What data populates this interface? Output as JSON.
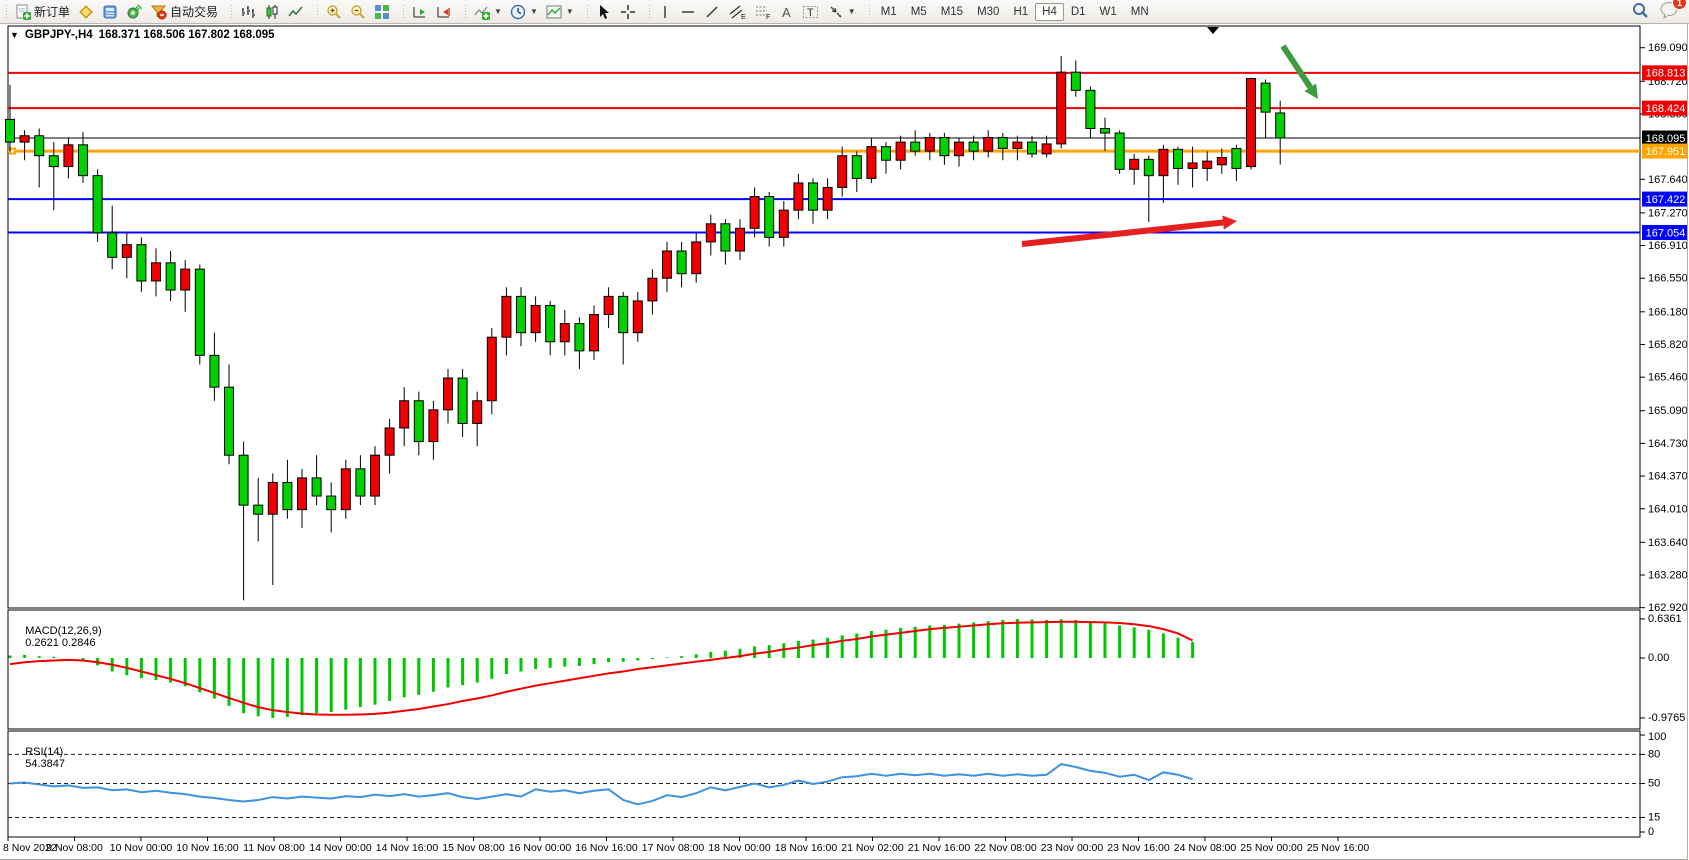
{
  "header": {
    "symbol": "GBPJPY-,H4",
    "ohlc": "168.371 168.506 167.802 168.095"
  },
  "toolbar": {
    "new_order_label": "新订单",
    "autotrading_label": "自动交易",
    "timeframes": [
      "M1",
      "M5",
      "M15",
      "M30",
      "H1",
      "H4",
      "D1",
      "W1",
      "MN"
    ],
    "active_timeframe": "H4",
    "notification_count": "1",
    "icons": [
      "new-order-icon",
      "gold-icon",
      "market-watch-icon",
      "signals-icon",
      "autotrading-icon",
      "bar-chart-icon",
      "candlestick-icon",
      "line-chart-icon",
      "zoom-in-icon",
      "zoom-out-icon",
      "tile-windows-icon",
      "auto-scroll-icon",
      "chart-shift-icon",
      "indicators-icon",
      "periods-icon",
      "templates-icon",
      "cursor-icon",
      "crosshair-icon",
      "vertical-line-icon",
      "horizontal-line-icon",
      "trendline-icon",
      "channel-icon",
      "fibonacci-icon",
      "text-icon",
      "text-label-icon",
      "arrows-icon",
      "search-icon",
      "chat-icon"
    ]
  },
  "chart_data": {
    "type": "candlestick",
    "symbol": "GBPJPY-",
    "timeframe": "H4",
    "title": "GBPJPY-,H4 168.371 168.506 167.802 168.095",
    "colors": {
      "bull": "#f00000",
      "bear": "#00d200",
      "outline": "#000000",
      "macd_hist": "#00c800",
      "macd_signal": "#f00000",
      "rsi_line": "#3f92e0",
      "level_red": "#f00000",
      "level_blue": "#0000ff",
      "level_orange": "#ffa500",
      "current_price_line": "#000000",
      "green_arrow": "#3f9b3f",
      "red_arrow": "#e62020"
    },
    "candles": [
      [
        168.3,
        168.68,
        167.95,
        168.05
      ],
      [
        168.05,
        168.18,
        167.85,
        168.12
      ],
      [
        168.12,
        168.2,
        167.55,
        167.9
      ],
      [
        167.9,
        168.05,
        167.3,
        167.78
      ],
      [
        167.78,
        168.1,
        167.65,
        168.02
      ],
      [
        168.02,
        168.16,
        167.6,
        167.68
      ],
      [
        167.68,
        167.75,
        166.95,
        167.05
      ],
      [
        167.05,
        167.35,
        166.65,
        166.78
      ],
      [
        166.78,
        167.05,
        166.55,
        166.92
      ],
      [
        166.92,
        167.0,
        166.4,
        166.52
      ],
      [
        166.52,
        166.88,
        166.35,
        166.72
      ],
      [
        166.72,
        166.85,
        166.3,
        166.42
      ],
      [
        166.42,
        166.75,
        166.18,
        166.65
      ],
      [
        166.65,
        166.7,
        165.6,
        165.7
      ],
      [
        165.7,
        165.95,
        165.2,
        165.35
      ],
      [
        165.35,
        165.6,
        164.5,
        164.6
      ],
      [
        164.6,
        164.75,
        163.0,
        164.05
      ],
      [
        164.05,
        164.35,
        163.65,
        163.95
      ],
      [
        163.95,
        164.4,
        163.17,
        164.3
      ],
      [
        164.3,
        164.55,
        163.9,
        164.0
      ],
      [
        164.0,
        164.45,
        163.8,
        164.35
      ],
      [
        164.35,
        164.6,
        164.05,
        164.15
      ],
      [
        164.15,
        164.3,
        163.75,
        164.0
      ],
      [
        164.0,
        164.55,
        163.9,
        164.45
      ],
      [
        164.45,
        164.6,
        164.05,
        164.15
      ],
      [
        164.15,
        164.7,
        164.05,
        164.6
      ],
      [
        164.6,
        165.0,
        164.4,
        164.9
      ],
      [
        164.9,
        165.35,
        164.7,
        165.2
      ],
      [
        165.2,
        165.3,
        164.6,
        164.75
      ],
      [
        164.75,
        165.2,
        164.55,
        165.1
      ],
      [
        165.1,
        165.55,
        164.95,
        165.45
      ],
      [
        165.45,
        165.55,
        164.8,
        164.95
      ],
      [
        164.95,
        165.3,
        164.7,
        165.2
      ],
      [
        165.2,
        166.0,
        165.05,
        165.9
      ],
      [
        165.9,
        166.45,
        165.7,
        166.35
      ],
      [
        166.35,
        166.45,
        165.8,
        165.95
      ],
      [
        165.95,
        166.35,
        165.85,
        166.25
      ],
      [
        166.25,
        166.3,
        165.7,
        165.85
      ],
      [
        165.85,
        166.2,
        165.7,
        166.05
      ],
      [
        166.05,
        166.12,
        165.55,
        165.75
      ],
      [
        165.75,
        166.25,
        165.65,
        166.15
      ],
      [
        166.15,
        166.45,
        166.0,
        166.35
      ],
      [
        166.35,
        166.4,
        165.6,
        165.95
      ],
      [
        165.95,
        166.4,
        165.85,
        166.3
      ],
      [
        166.3,
        166.65,
        166.15,
        166.55
      ],
      [
        166.55,
        166.95,
        166.4,
        166.85
      ],
      [
        166.85,
        166.95,
        166.45,
        166.6
      ],
      [
        166.6,
        167.05,
        166.5,
        166.95
      ],
      [
        166.95,
        167.25,
        166.8,
        167.15
      ],
      [
        167.15,
        167.2,
        166.7,
        166.85
      ],
      [
        166.85,
        167.2,
        166.75,
        167.1
      ],
      [
        167.1,
        167.55,
        167.0,
        167.45
      ],
      [
        167.45,
        167.5,
        166.9,
        167.0
      ],
      [
        167.0,
        167.4,
        166.9,
        167.3
      ],
      [
        167.3,
        167.7,
        167.2,
        167.6
      ],
      [
        167.6,
        167.65,
        167.15,
        167.3
      ],
      [
        167.3,
        167.65,
        167.2,
        167.55
      ],
      [
        167.55,
        168.0,
        167.45,
        167.9
      ],
      [
        167.9,
        167.95,
        167.5,
        167.65
      ],
      [
        167.65,
        168.1,
        167.6,
        168.0
      ],
      [
        168.0,
        168.05,
        167.7,
        167.85
      ],
      [
        167.85,
        168.12,
        167.75,
        168.05
      ],
      [
        168.05,
        168.18,
        167.9,
        167.95
      ],
      [
        167.95,
        168.15,
        167.85,
        168.1
      ],
      [
        168.1,
        168.15,
        167.8,
        167.9
      ],
      [
        167.9,
        168.1,
        167.78,
        168.05
      ],
      [
        168.05,
        168.12,
        167.85,
        167.95
      ],
      [
        167.95,
        168.18,
        167.88,
        168.1
      ],
      [
        168.1,
        168.15,
        167.85,
        167.98
      ],
      [
        167.98,
        168.12,
        167.85,
        168.05
      ],
      [
        168.05,
        168.12,
        167.88,
        167.92
      ],
      [
        167.92,
        168.12,
        167.88,
        168.03
      ],
      [
        168.03,
        169.0,
        167.98,
        168.82
      ],
      [
        168.82,
        168.95,
        168.55,
        168.62
      ],
      [
        168.62,
        168.66,
        168.1,
        168.2
      ],
      [
        168.2,
        168.32,
        167.95,
        168.15
      ],
      [
        168.15,
        168.18,
        167.7,
        167.75
      ],
      [
        167.75,
        167.92,
        167.58,
        167.86
      ],
      [
        167.86,
        167.9,
        167.17,
        167.68
      ],
      [
        167.68,
        168.02,
        167.38,
        167.97
      ],
      [
        167.97,
        168.0,
        167.58,
        167.76
      ],
      [
        167.76,
        168.0,
        167.55,
        167.82
      ],
      [
        167.76,
        167.95,
        167.62,
        167.84
      ],
      [
        167.8,
        167.98,
        167.7,
        167.88
      ],
      [
        167.98,
        168.02,
        167.62,
        167.76
      ],
      [
        167.78,
        168.76,
        167.75,
        168.75
      ],
      [
        168.7,
        168.74,
        168.09,
        168.38
      ],
      [
        168.371,
        168.506,
        167.802,
        168.095
      ]
    ],
    "price_ticks": [
      169.09,
      168.72,
      168.36,
      167.64,
      167.27,
      166.91,
      166.55,
      166.18,
      165.82,
      165.46,
      165.09,
      164.73,
      164.37,
      164.01,
      163.64,
      163.28,
      162.92
    ],
    "hlines": [
      {
        "price": 168.813,
        "label": "168.813",
        "color": "#f00000",
        "width": 2
      },
      {
        "price": 168.424,
        "label": "168.424",
        "color": "#f00000",
        "width": 2
      },
      {
        "price": 168.095,
        "label": "168.095",
        "color": "#000000",
        "width": 1
      },
      {
        "price": 167.951,
        "label": "167.951",
        "color": "#ffa500",
        "width": 3,
        "handle": true
      },
      {
        "price": 167.422,
        "label": "167.422",
        "color": "#0000ff",
        "width": 2
      },
      {
        "price": 167.054,
        "label": "167.054",
        "color": "#0000ff",
        "width": 2
      }
    ],
    "dates": [
      "8 Nov 2022",
      "9 Nov 08:00",
      "10 Nov 00:00",
      "10 Nov 16:00",
      "11 Nov 08:00",
      "14 Nov 00:00",
      "14 Nov 16:00",
      "15 Nov 08:00",
      "16 Nov 00:00",
      "16 Nov 16:00",
      "17 Nov 08:00",
      "18 Nov 00:00",
      "18 Nov 16:00",
      "21 Nov 02:00",
      "21 Nov 16:00",
      "22 Nov 08:00",
      "23 Nov 00:00",
      "23 Nov 16:00",
      "24 Nov 08:00",
      "25 Nov 00:00",
      "25 Nov 16:00"
    ],
    "macd": {
      "label": "MACD(12,26,9)",
      "values_text": "0.2621 0.2846",
      "main_value": 0.2621,
      "signal_value": 0.2846,
      "axis_ticks": [
        0.6361,
        0.0,
        -0.9765
      ],
      "axis_labels": [
        "0.6361",
        "0.00",
        "-0.9765"
      ],
      "hist": [
        0.04,
        0.05,
        0.03,
        0.02,
        0.0,
        -0.04,
        -0.12,
        -0.22,
        -0.28,
        -0.33,
        -0.36,
        -0.4,
        -0.46,
        -0.56,
        -0.66,
        -0.78,
        -0.9,
        -0.95,
        -0.976,
        -0.96,
        -0.93,
        -0.9,
        -0.88,
        -0.84,
        -0.8,
        -0.76,
        -0.7,
        -0.64,
        -0.6,
        -0.55,
        -0.48,
        -0.44,
        -0.4,
        -0.34,
        -0.26,
        -0.22,
        -0.18,
        -0.16,
        -0.14,
        -0.13,
        -0.1,
        -0.07,
        -0.06,
        -0.04,
        -0.02,
        0.01,
        0.03,
        0.06,
        0.1,
        0.12,
        0.15,
        0.19,
        0.21,
        0.24,
        0.28,
        0.3,
        0.33,
        0.37,
        0.4,
        0.44,
        0.46,
        0.49,
        0.51,
        0.53,
        0.54,
        0.56,
        0.58,
        0.6,
        0.62,
        0.636,
        0.63,
        0.62,
        0.63,
        0.62,
        0.6,
        0.57,
        0.53,
        0.5,
        0.46,
        0.4,
        0.33,
        0.2621
      ],
      "signal": [
        -0.1,
        -0.07,
        -0.05,
        -0.04,
        -0.03,
        -0.04,
        -0.07,
        -0.11,
        -0.16,
        -0.22,
        -0.28,
        -0.34,
        -0.41,
        -0.49,
        -0.57,
        -0.65,
        -0.73,
        -0.8,
        -0.85,
        -0.88,
        -0.905,
        -0.92,
        -0.925,
        -0.925,
        -0.92,
        -0.91,
        -0.89,
        -0.86,
        -0.83,
        -0.79,
        -0.75,
        -0.7,
        -0.66,
        -0.61,
        -0.55,
        -0.5,
        -0.45,
        -0.41,
        -0.37,
        -0.33,
        -0.29,
        -0.25,
        -0.22,
        -0.18,
        -0.15,
        -0.12,
        -0.09,
        -0.06,
        -0.03,
        0.0,
        0.03,
        0.07,
        0.1,
        0.14,
        0.17,
        0.21,
        0.24,
        0.28,
        0.31,
        0.35,
        0.38,
        0.41,
        0.44,
        0.47,
        0.49,
        0.51,
        0.53,
        0.55,
        0.565,
        0.575,
        0.58,
        0.585,
        0.59,
        0.59,
        0.585,
        0.58,
        0.57,
        0.55,
        0.52,
        0.47,
        0.4,
        0.2846
      ]
    },
    "rsi": {
      "label": "RSI(14)",
      "value_text": "54.3847",
      "value": 54.3847,
      "axis_ticks": [
        100,
        80,
        50,
        15,
        0
      ],
      "axis_labels": [
        "100",
        "80",
        "50",
        "15",
        "0"
      ],
      "dashed_levels": [
        80,
        50,
        15
      ],
      "series": [
        50,
        51,
        49,
        47,
        48,
        45.5,
        46,
        43,
        44,
        41,
        42.5,
        40.5,
        39,
        36.5,
        35,
        33,
        31.5,
        33,
        36,
        34.5,
        36.5,
        35.5,
        34.5,
        37,
        36,
        38.5,
        37,
        39,
        36.5,
        38,
        40,
        36,
        34,
        36.5,
        39,
        36.5,
        44,
        41.5,
        43,
        40,
        42.5,
        44,
        33,
        28.5,
        32,
        38,
        36,
        40,
        46,
        43,
        46.5,
        50,
        46,
        48.5,
        53,
        49.5,
        52,
        56.5,
        57.5,
        60,
        58,
        60,
        58.5,
        60,
        58,
        59.5,
        58,
        60,
        58,
        59.5,
        58,
        59,
        70,
        67,
        63,
        61,
        57,
        59,
        53.5,
        61.5,
        59,
        54.38
      ]
    },
    "annotations": {
      "green_arrow": {
        "from": [
          1283,
          22
        ],
        "to": [
          1318,
          75
        ],
        "color": "#3f9b3f"
      },
      "red_arrow": {
        "from": [
          1022,
          220
        ],
        "to": [
          1237,
          197
        ],
        "color": "#e62020"
      }
    }
  }
}
